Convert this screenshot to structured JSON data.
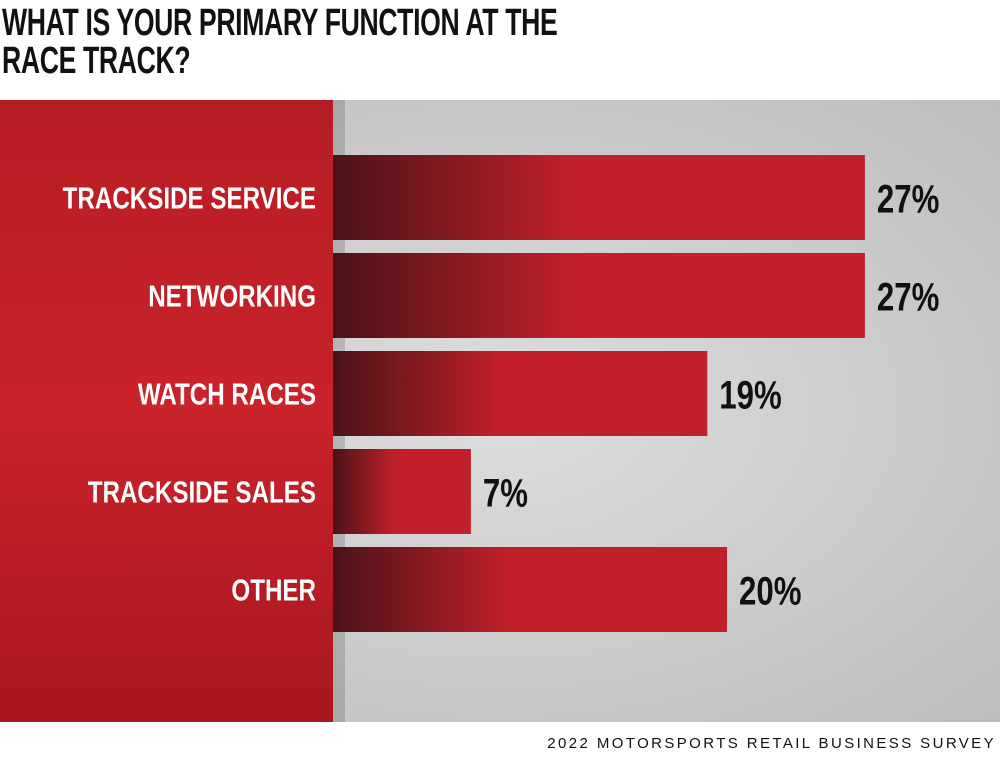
{
  "chart_data": {
    "type": "hbar",
    "title": "WHAT IS YOUR PRIMARY FUNCTION AT THE RACE TRACK?",
    "categories": [
      "TRACKSIDE SERVICE",
      "NETWORKING",
      "WATCH RACES",
      "TRACKSIDE SALES",
      "OTHER"
    ],
    "values": [
      27,
      27,
      19,
      7,
      20
    ],
    "value_labels": [
      "27%",
      "27%",
      "19%",
      "7%",
      "20%"
    ],
    "color": "#c1202a",
    "source": "2022 MOTORSPORTS RETAIL BUSINESS SURVEY"
  }
}
